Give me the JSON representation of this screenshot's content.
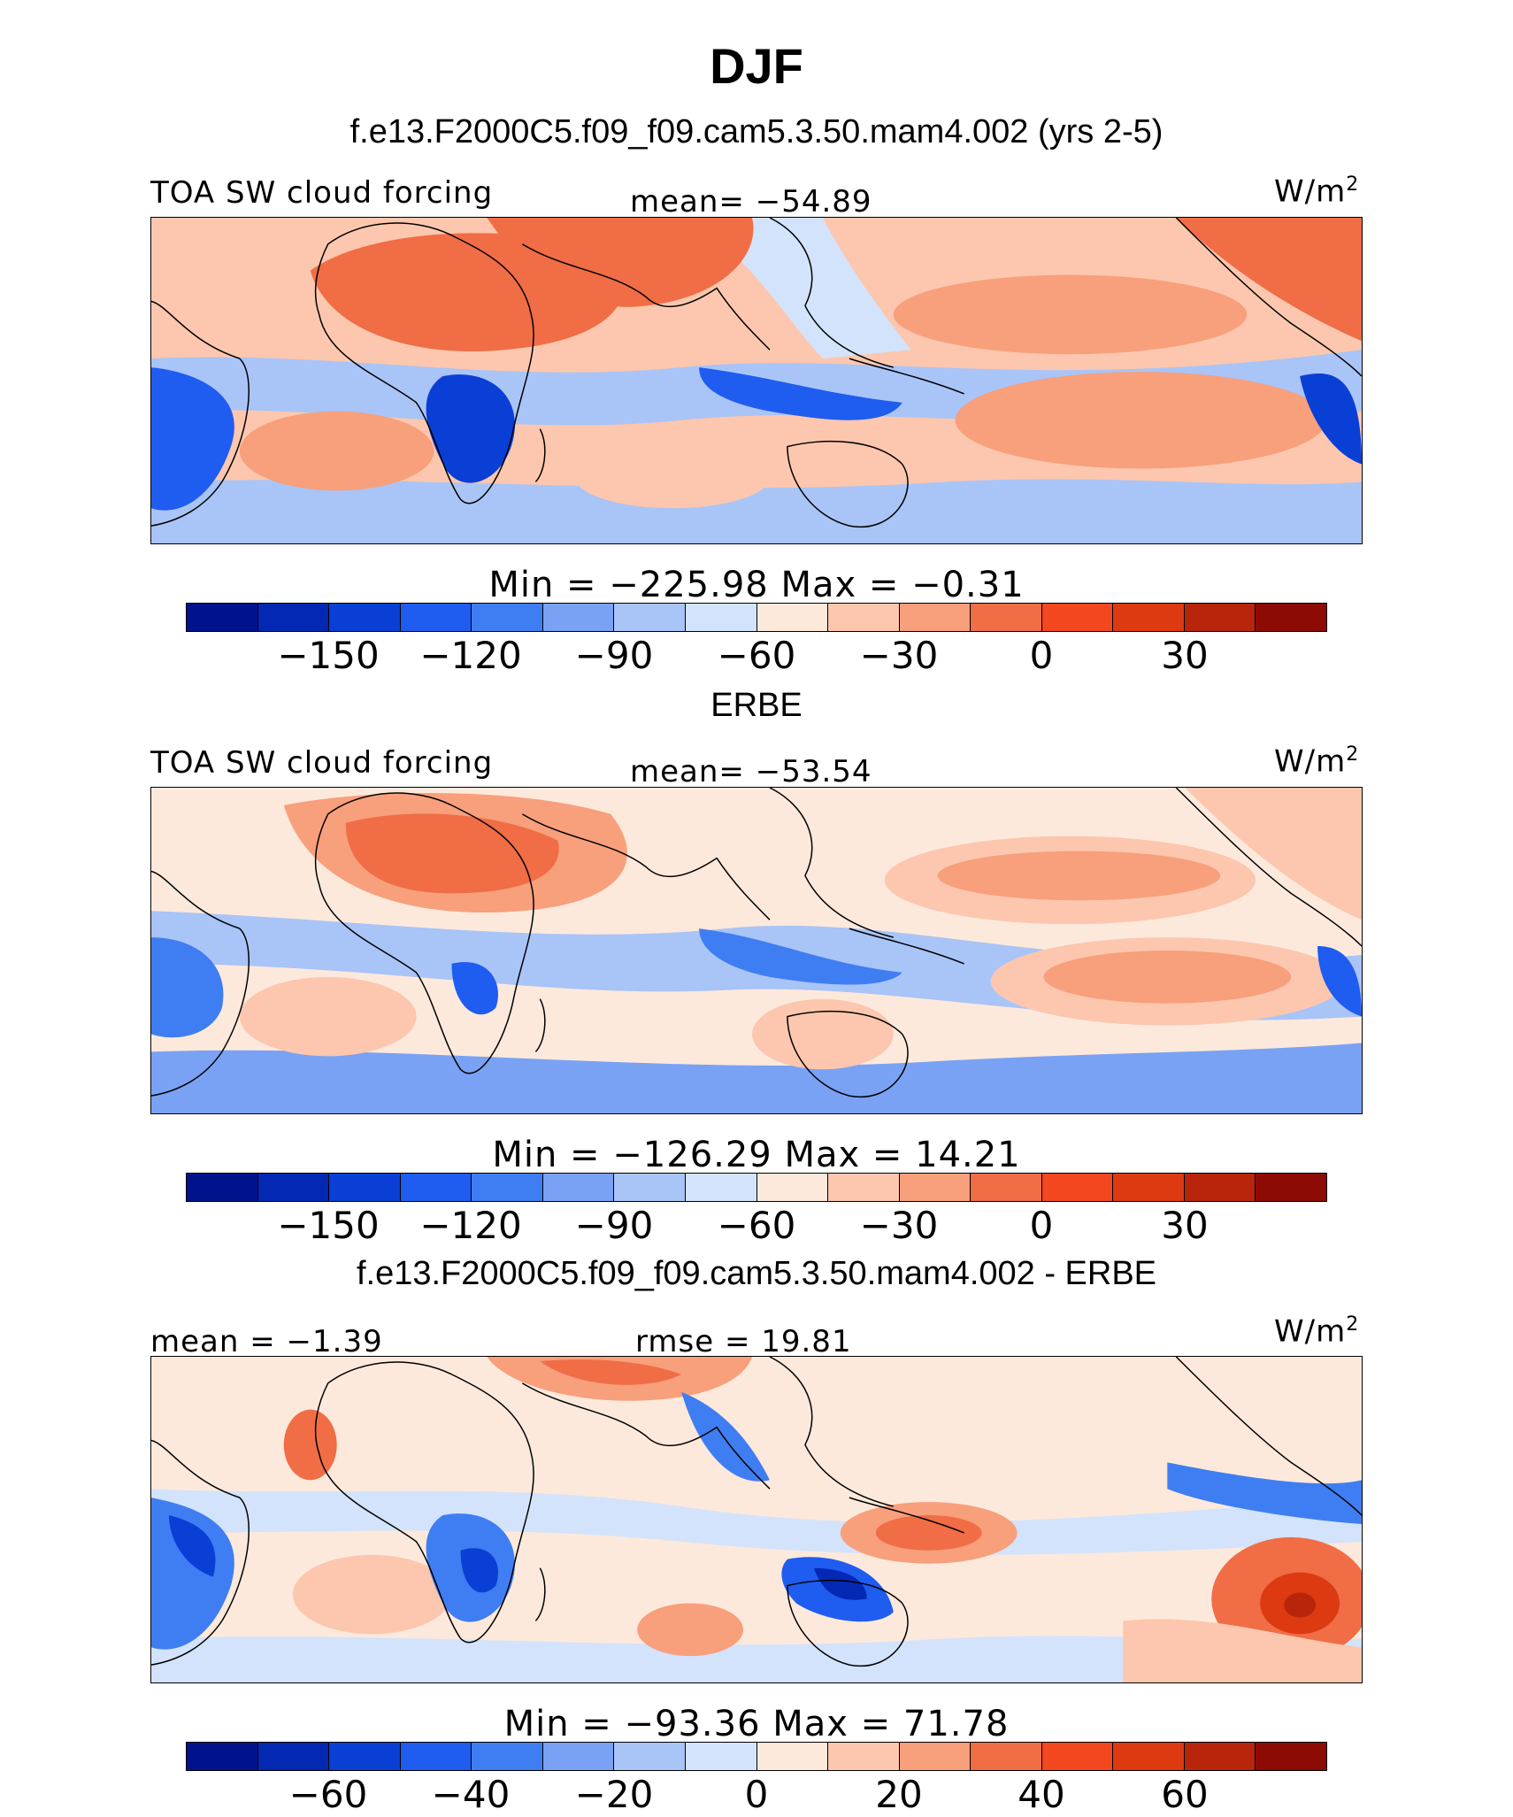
{
  "title": "DJF",
  "case_title": "f.e13.F2000C5.f09_f09.cam5.3.50.mam4.002 (yrs 2-5)",
  "unit": "W/m",
  "unit_exp": "2",
  "colorbar_colors": [
    "#00138c",
    "#0328b4",
    "#0a3fd6",
    "#1f5cf0",
    "#3f7ef2",
    "#7aa2f4",
    "#a9c4f7",
    "#d3e3fb",
    "#fde9dc",
    "#fcc7ae",
    "#f89f7c",
    "#f06d45",
    "#f3471f",
    "#dd3a12",
    "#b8250b",
    "#8c0b04"
  ],
  "panels": [
    {
      "heading": "",
      "left_label": "TOA SW cloud forcing",
      "center_label": "mean= −54.89",
      "min_label": "Min  =  −225.98  Max  =   −0.31",
      "ticks": [
        "−150",
        "−120",
        "−90",
        "−60",
        "−30",
        "0",
        "30"
      ]
    },
    {
      "heading": "ERBE",
      "left_label": "TOA SW cloud forcing",
      "center_label": "mean= −53.54",
      "min_label": "Min  =  −126.29  Max  =   14.21",
      "ticks": [
        "−150",
        "−120",
        "−90",
        "−60",
        "−30",
        "0",
        "30"
      ]
    },
    {
      "heading": "f.e13.F2000C5.f09_f09.cam5.3.50.mam4.002 - ERBE",
      "left_label": "mean =  −1.39",
      "center_label": "rmse =   19.81",
      "min_label": "Min  =  −93.36  Max  =   71.78",
      "ticks": [
        "−60",
        "−40",
        "−20",
        "0",
        "20",
        "40",
        "60"
      ]
    }
  ]
}
